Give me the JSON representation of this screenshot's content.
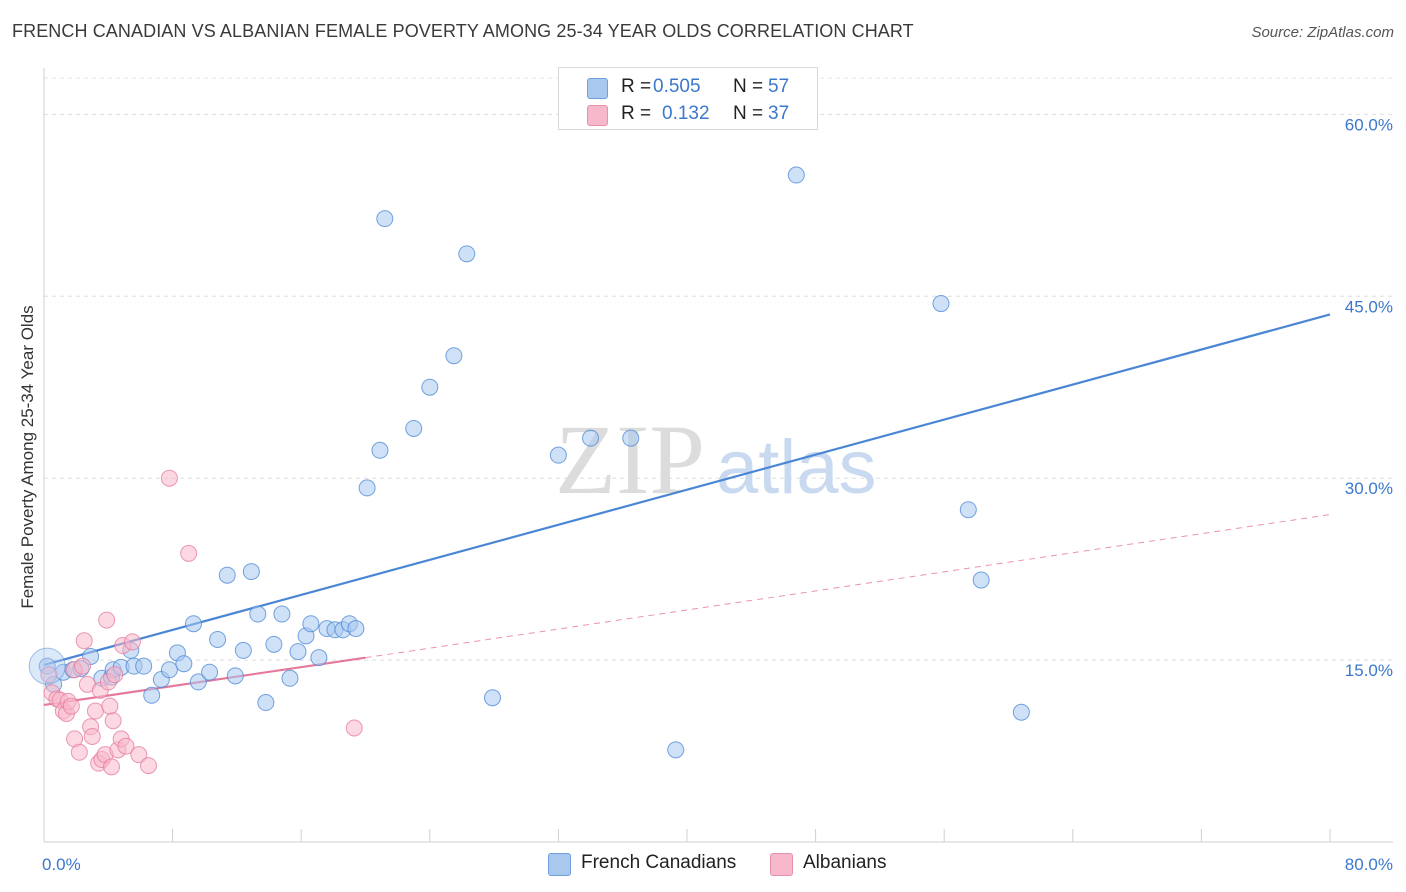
{
  "title": "FRENCH CANADIAN VS ALBANIAN FEMALE POVERTY AMONG 25-34 YEAR OLDS CORRELATION CHART",
  "source": "Source: ZipAtlas.com",
  "watermark": {
    "zip": "ZIP",
    "atlas": "atlas"
  },
  "legend": {
    "rows": [
      {
        "r_label": "R =",
        "r_value": "0.505",
        "n_label": "N =",
        "n_value": "57",
        "color": "#a8c8f0"
      },
      {
        "r_label": "R =",
        "r_value": "0.132",
        "n_label": "N =",
        "n_value": "37",
        "color": "#f7b8cb"
      }
    ]
  },
  "bottom_legend": [
    {
      "label": "French Canadians",
      "color": "#a8c8f0"
    },
    {
      "label": "Albanians",
      "color": "#f7b8cb"
    }
  ],
  "chart_data": {
    "type": "scatter",
    "xlabel": "",
    "ylabel": "Female Poverty Among 25-34 Year Olds",
    "xlim": [
      0,
      80
    ],
    "ylim": [
      0,
      63
    ],
    "x_tick_labels": [
      "0.0%",
      "80.0%"
    ],
    "y_ticks": [
      15,
      30,
      45,
      60
    ],
    "y_tick_labels": [
      "15.0%",
      "30.0%",
      "45.0%",
      "60.0%"
    ],
    "grid": true,
    "series": [
      {
        "name": "French Canadians",
        "color": "#4a86d4",
        "fill": "#a8c8f0",
        "trend": {
          "x": [
            0,
            80
          ],
          "y": [
            14.6,
            43.5
          ],
          "style": "solid"
        },
        "points": [
          [
            0.2,
            14.5
          ],
          [
            0.6,
            13.0
          ],
          [
            1.2,
            14.0
          ],
          [
            1.8,
            14.2
          ],
          [
            2.3,
            14.3
          ],
          [
            2.9,
            15.3
          ],
          [
            3.6,
            13.5
          ],
          [
            4.2,
            13.6
          ],
          [
            4.3,
            14.2
          ],
          [
            4.8,
            14.4
          ],
          [
            5.4,
            15.8
          ],
          [
            5.6,
            14.5
          ],
          [
            6.2,
            14.5
          ],
          [
            6.7,
            12.1
          ],
          [
            7.3,
            13.4
          ],
          [
            7.8,
            14.2
          ],
          [
            8.3,
            15.6
          ],
          [
            8.7,
            14.7
          ],
          [
            9.3,
            18.0
          ],
          [
            9.6,
            13.2
          ],
          [
            10.3,
            14.0
          ],
          [
            10.8,
            16.7
          ],
          [
            11.4,
            22.0
          ],
          [
            11.9,
            13.7
          ],
          [
            12.4,
            15.8
          ],
          [
            12.9,
            22.3
          ],
          [
            13.3,
            18.8
          ],
          [
            13.8,
            11.5
          ],
          [
            14.3,
            16.3
          ],
          [
            14.8,
            18.8
          ],
          [
            15.3,
            13.5
          ],
          [
            15.8,
            15.7
          ],
          [
            16.3,
            17.0
          ],
          [
            16.6,
            18.0
          ],
          [
            17.1,
            15.2
          ],
          [
            17.6,
            17.6
          ],
          [
            18.1,
            17.5
          ],
          [
            18.6,
            17.5
          ],
          [
            19.0,
            18.0
          ],
          [
            19.4,
            17.6
          ],
          [
            20.1,
            29.2
          ],
          [
            20.9,
            32.3
          ],
          [
            21.2,
            51.4
          ],
          [
            23.0,
            34.1
          ],
          [
            24.0,
            37.5
          ],
          [
            25.5,
            40.1
          ],
          [
            26.3,
            48.5
          ],
          [
            27.9,
            11.9
          ],
          [
            32.0,
            31.9
          ],
          [
            34.0,
            33.3
          ],
          [
            36.5,
            33.3
          ],
          [
            39.3,
            7.6
          ],
          [
            46.8,
            55.0
          ],
          [
            55.8,
            44.4
          ],
          [
            57.5,
            27.4
          ],
          [
            58.3,
            21.6
          ],
          [
            60.8,
            10.7
          ]
        ]
      },
      {
        "name": "Albanians",
        "color": "#e4799c",
        "fill": "#f7b8cb",
        "trend": {
          "x": [
            0,
            20
          ],
          "y": [
            11.3,
            15.2
          ],
          "style": "solid"
        },
        "trend_ext": {
          "x": [
            20,
            80
          ],
          "y": [
            15.2,
            27.0
          ],
          "style": "dashed"
        },
        "points": [
          [
            0.3,
            13.8
          ],
          [
            0.5,
            12.3
          ],
          [
            0.8,
            11.8
          ],
          [
            1.0,
            11.7
          ],
          [
            1.2,
            10.8
          ],
          [
            1.4,
            10.6
          ],
          [
            1.5,
            11.6
          ],
          [
            1.7,
            11.2
          ],
          [
            1.9,
            14.2
          ],
          [
            1.9,
            8.5
          ],
          [
            2.2,
            7.4
          ],
          [
            2.4,
            14.5
          ],
          [
            2.5,
            16.6
          ],
          [
            2.7,
            13.0
          ],
          [
            2.9,
            9.5
          ],
          [
            3.0,
            8.7
          ],
          [
            3.2,
            10.8
          ],
          [
            3.4,
            6.5
          ],
          [
            3.5,
            12.5
          ],
          [
            3.6,
            6.8
          ],
          [
            3.8,
            7.2
          ],
          [
            3.9,
            18.3
          ],
          [
            4.0,
            13.2
          ],
          [
            4.1,
            11.2
          ],
          [
            4.2,
            6.2
          ],
          [
            4.3,
            10.0
          ],
          [
            4.4,
            13.8
          ],
          [
            4.6,
            7.6
          ],
          [
            4.8,
            8.5
          ],
          [
            4.9,
            16.2
          ],
          [
            5.1,
            7.9
          ],
          [
            5.5,
            16.5
          ],
          [
            5.9,
            7.2
          ],
          [
            6.5,
            6.3
          ],
          [
            7.8,
            30.0
          ],
          [
            9.0,
            23.8
          ],
          [
            19.3,
            9.4
          ]
        ]
      }
    ]
  }
}
